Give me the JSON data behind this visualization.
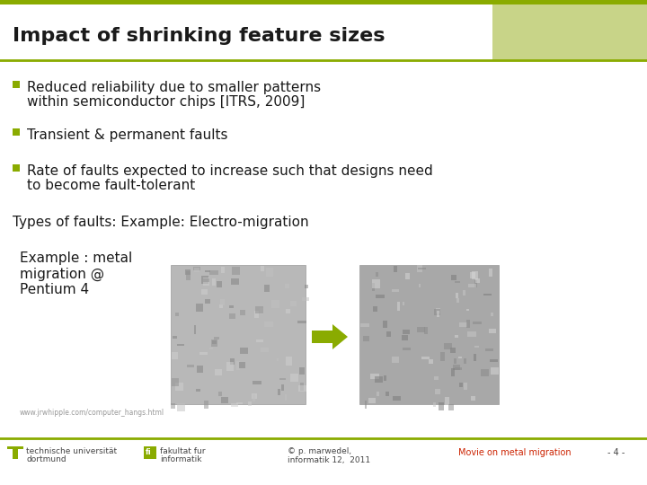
{
  "title": "Impact of shrinking feature sizes",
  "title_color": "#1a1a1a",
  "title_fontsize": 16,
  "background_color": "#ffffff",
  "bullet_color": "#8aab00",
  "olive_green": "#8aab00",
  "line_color": "#8aab00",
  "right_box_color": "#c8d488",
  "text_color": "#1a1a1a",
  "footer_text_color": "#444444",
  "footer_link_color": "#cc2200",
  "bullet_fontsize": 11,
  "subheading_fontsize": 11,
  "example_fontsize": 11,
  "footer_fontsize": 6.5,
  "subheading": "Types of faults: Example: Electro-migration",
  "example_text": "Example : metal\nmigration @\nPentium 4",
  "url_text": "www.jrwhipple.com/computer_hangs.html",
  "footer_left1": "technische universität",
  "footer_left2": "dortmund",
  "footer_mid1": "fakultat fur",
  "footer_mid2": "informatik",
  "footer_copy": "© p. marwedel,\ninformatik 12,  2011",
  "footer_link": "Movie on metal migration",
  "footer_page": "- 4 -",
  "img1_color": "#b8b8b8",
  "img2_color": "#a8a8a8",
  "img_border": "#999999"
}
